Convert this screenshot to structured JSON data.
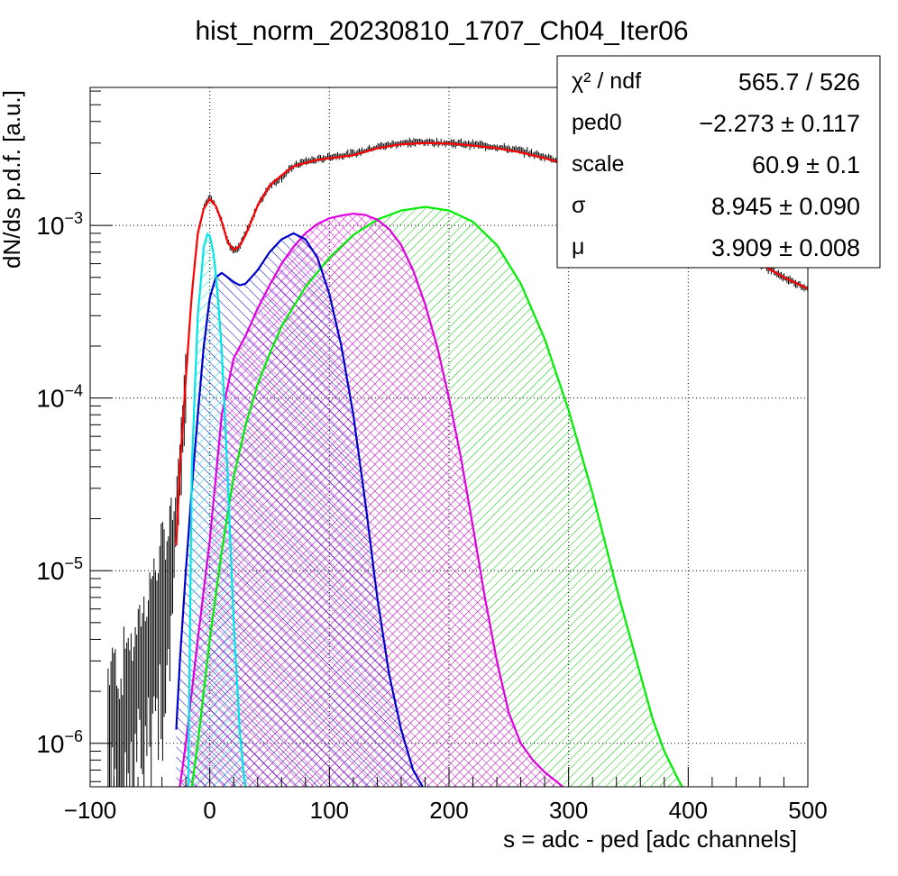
{
  "chart_data": {
    "type": "line",
    "title": "hist_norm_20230810_1707_Ch04_Iter06",
    "xlabel": "s = adc - ped [adc channels]",
    "ylabel": "dN/ds p.d.f. [a.u.]",
    "xlim": [
      -100,
      500
    ],
    "ylim": [
      5.6e-07,
      0.0063
    ],
    "yscale": "log",
    "grid": true,
    "x_ticks": [
      {
        "v": -100,
        "label": "−100"
      },
      {
        "v": 0,
        "label": "0"
      },
      {
        "v": 100,
        "label": "100"
      },
      {
        "v": 200,
        "label": "200"
      },
      {
        "v": 300,
        "label": "300"
      },
      {
        "v": 400,
        "label": "400"
      },
      {
        "v": 500,
        "label": "500"
      }
    ],
    "y_ticks": [
      {
        "v": 1e-06,
        "base": "10",
        "exp": "−6"
      },
      {
        "v": 1e-05,
        "base": "10",
        "exp": "−5"
      },
      {
        "v": 0.0001,
        "base": "10",
        "exp": "−4"
      },
      {
        "v": 0.001,
        "base": "10",
        "exp": "−3"
      }
    ],
    "stats_box": {
      "rows": [
        {
          "label": "χ² / ndf",
          "value": "565.7 / 526"
        },
        {
          "label": "ped0",
          "value": "−2.273 ± 0.117"
        },
        {
          "label": "scale",
          "value": "60.9 ± 0.1"
        },
        {
          "label": "σ",
          "value": "8.945 ± 0.090"
        },
        {
          "label": "μ",
          "value": "3.909 ± 0.008"
        }
      ]
    },
    "series": [
      {
        "role": "data histogram",
        "color": "#000000",
        "x": [
          -85,
          -80,
          -75,
          -70,
          -65,
          -60,
          -55,
          -50,
          -45,
          -40,
          -35,
          -30,
          -25,
          -20,
          -15,
          -10,
          -5,
          0,
          5,
          10,
          15,
          20,
          25,
          30,
          40,
          50,
          60,
          70,
          80,
          90,
          100,
          120,
          140,
          160,
          180,
          200,
          220,
          240,
          260,
          280,
          300,
          320,
          340,
          360,
          380,
          400,
          420,
          440,
          460,
          480,
          500
        ],
        "y": [
          1.5e-06,
          2e-06,
          1.2e-06,
          2.5e-06,
          2e-06,
          3e-06,
          3.5e-06,
          5e-06,
          6e-06,
          8e-06,
          1e-05,
          1.5e-05,
          4e-05,
          0.00013,
          0.0004,
          0.0009,
          0.0013,
          0.00145,
          0.0013,
          0.00105,
          0.0008,
          0.0007,
          0.00076,
          0.0009,
          0.0013,
          0.0017,
          0.0019,
          0.0022,
          0.00235,
          0.0024,
          0.0025,
          0.0026,
          0.00285,
          0.003,
          0.00305,
          0.003,
          0.00295,
          0.00285,
          0.0027,
          0.0025,
          0.0023,
          0.002,
          0.00175,
          0.0015,
          0.00125,
          0.00105,
          0.0009,
          0.00075,
          0.0006,
          0.0005,
          0.00043
        ]
      },
      {
        "role": "total fit",
        "color": "#ff0000",
        "x": [
          -28,
          -25,
          -20,
          -15,
          -10,
          -5,
          0,
          5,
          10,
          15,
          20,
          25,
          30,
          40,
          50,
          60,
          70,
          80,
          90,
          100,
          120,
          140,
          160,
          180,
          200,
          220,
          240,
          260,
          280,
          300,
          320,
          340,
          360,
          380,
          400,
          420,
          440,
          460,
          480,
          500
        ],
        "y": [
          1.4e-05,
          4e-05,
          0.00013,
          0.0004,
          0.0009,
          0.00125,
          0.00142,
          0.0013,
          0.00105,
          0.0008,
          0.00072,
          0.00076,
          0.00088,
          0.0013,
          0.0017,
          0.00195,
          0.0022,
          0.0023,
          0.0024,
          0.00245,
          0.00255,
          0.0028,
          0.00295,
          0.003,
          0.00298,
          0.0029,
          0.0028,
          0.00265,
          0.00245,
          0.00225,
          0.002,
          0.00175,
          0.0015,
          0.00125,
          0.00105,
          0.00088,
          0.00073,
          0.0006,
          0.0005,
          0.00043
        ]
      },
      {
        "role": "0 p.e. component",
        "color": "#00e5e5",
        "x": [
          -18,
          -15,
          -10,
          -5,
          -2,
          0,
          3,
          6,
          10,
          15,
          20,
          25,
          28,
          30
        ],
        "y": [
          5.6e-07,
          4e-05,
          0.0003,
          0.00075,
          0.00089,
          0.00087,
          0.0007,
          0.00045,
          0.00019,
          3.5e-05,
          5e-06,
          1.2e-06,
          7e-07,
          5.6e-07
        ]
      },
      {
        "role": "1 p.e. component",
        "color": "#0000cc",
        "x": [
          -28,
          -25,
          -20,
          -15,
          -10,
          -5,
          0,
          5,
          10,
          15,
          20,
          25,
          30,
          40,
          50,
          60,
          70,
          80,
          90,
          100,
          110,
          120,
          130,
          140,
          150,
          160,
          170,
          178
        ],
        "y": [
          1.2e-06,
          3e-06,
          1e-05,
          3e-05,
          8e-05,
          0.0002,
          0.00038,
          0.0005,
          0.00053,
          0.0005,
          0.00047,
          0.00045,
          0.00046,
          0.00055,
          0.0007,
          0.00083,
          0.0009,
          0.00083,
          0.00065,
          0.0004,
          0.0002,
          8e-05,
          2.5e-05,
          7e-06,
          2.5e-06,
          1.2e-06,
          7e-07,
          5.6e-07
        ]
      },
      {
        "role": "2 p.e. component",
        "color": "#e000e0",
        "x": [
          -25,
          -20,
          -10,
          0,
          10,
          20,
          30,
          40,
          50,
          60,
          70,
          80,
          90,
          100,
          110,
          120,
          130,
          140,
          150,
          160,
          170,
          180,
          190,
          200,
          210,
          220,
          230,
          240,
          250,
          260,
          270,
          280,
          290,
          295
        ],
        "y": [
          5.6e-07,
          1e-06,
          4e-06,
          1.5e-05,
          8e-05,
          0.00017,
          0.00023,
          0.00033,
          0.00045,
          0.0006,
          0.00075,
          0.0009,
          0.00102,
          0.0011,
          0.00114,
          0.00117,
          0.00115,
          0.00108,
          0.00095,
          0.00077,
          0.00055,
          0.00035,
          0.0002,
          0.0001,
          4.5e-05,
          1.8e-05,
          7e-06,
          3e-06,
          1.5e-06,
          1e-06,
          8e-07,
          6.8e-07,
          6e-07,
          5.6e-07
        ]
      },
      {
        "role": "3 p.e. component",
        "color": "#00ee00",
        "x": [
          -15,
          -10,
          0,
          10,
          20,
          30,
          40,
          50,
          60,
          80,
          100,
          120,
          140,
          160,
          180,
          200,
          220,
          240,
          260,
          280,
          300,
          320,
          340,
          360,
          370,
          380,
          390,
          395
        ],
        "y": [
          5.6e-07,
          1e-06,
          4e-06,
          1.3e-05,
          3.5e-05,
          7e-05,
          0.00012,
          0.00018,
          0.00026,
          0.00044,
          0.00065,
          0.00088,
          0.00108,
          0.00122,
          0.00128,
          0.00122,
          0.00105,
          0.00077,
          0.00046,
          0.00022,
          8.5e-05,
          2.8e-05,
          8e-06,
          2.5e-06,
          1.4e-06,
          9e-07,
          6.5e-07,
          5.6e-07
        ]
      }
    ]
  }
}
